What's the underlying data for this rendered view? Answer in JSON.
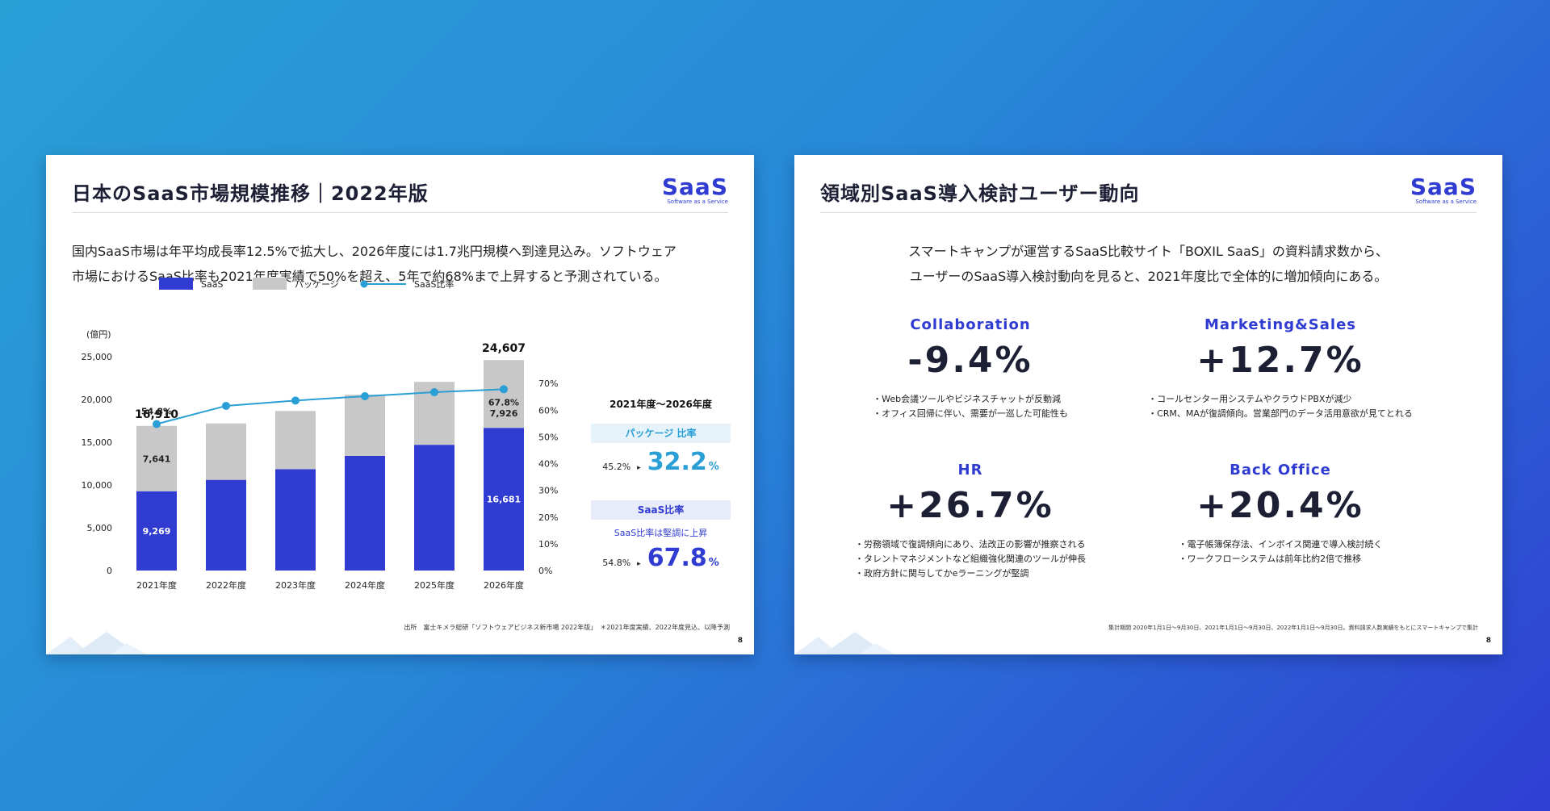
{
  "slide_left": {
    "title": "日本のSaaS市場規模推移｜2022年版",
    "logo_main": "SaaS",
    "logo_sub": "Software as a Service",
    "lead_line1": "国内SaaS市場は年平均成長率12.5%で拡大し、2026年度には1.7兆円規模へ到達見込み。ソフトウェア",
    "lead_line2": "市場におけるSaaS比率も2021年度実績で50%を超え、5年で約68%まで上昇すると予測されている。",
    "source": "出所　富士キメラ総研「ソフトウェアビジネス新市場 2022年版」　＊2021年度実績、2022年度見込、以降予測",
    "page": "8",
    "panel": {
      "head": "2021年度〜2026年度",
      "package_label": "パッケージ 比率",
      "package_from": "45.2%",
      "package_to": "32.2",
      "saas_label": "SaaS比率",
      "saas_note": "SaaS比率は堅調に上昇",
      "saas_from": "54.8%",
      "saas_to": "67.8",
      "unit": "%",
      "arrow": "▸"
    }
  },
  "chart_data": {
    "type": "bar",
    "stacked": true,
    "categories": [
      "2021年度",
      "2022年度",
      "2023年度",
      "2024年度",
      "2025年度",
      "2026年度"
    ],
    "unit_label": "(億円)",
    "series": [
      {
        "name": "SaaS",
        "color": "#2f3bd1",
        "values": [
          9269,
          10600,
          11850,
          13400,
          14700,
          16681
        ]
      },
      {
        "name": "パッケージ",
        "color": "#c8c8c8",
        "values": [
          7641,
          6600,
          6800,
          7150,
          7350,
          7926
        ]
      }
    ],
    "line_series": {
      "name": "SaaS比率",
      "color": "#2a9fd6",
      "axis": "right",
      "values": [
        54.8,
        61.6,
        63.6,
        65.2,
        66.7,
        67.8
      ]
    },
    "y_left": {
      "min": 0,
      "max": 25000,
      "ticks": [
        "0",
        "5,000",
        "10,000",
        "15,000",
        "20,000",
        "25,000"
      ]
    },
    "y_right": {
      "min": 0,
      "max": 80,
      "ticks": [
        "0%",
        "10%",
        "20%",
        "30%",
        "40%",
        "50%",
        "60%",
        "70%"
      ]
    },
    "total_labels": {
      "first": "16,910",
      "last": "24,607"
    },
    "bar_labels": {
      "saas_first": "9,269",
      "pkg_first": "7,641",
      "saas_last": "16,681",
      "pkg_last": "7,926"
    },
    "ratio_labels": {
      "first": "54.8%",
      "last": "67.8%"
    },
    "legend_position": "top-left"
  },
  "slide_right": {
    "title": "領域別SaaS導入検討ユーザー動向",
    "logo_main": "SaaS",
    "logo_sub": "Software as a Service",
    "lead_line1": "スマートキャンプが運営するSaaS比較サイト「BOXIL SaaS」の資料請求数から、",
    "lead_line2": "ユーザーのSaaS導入検討動向を見ると、2021年度比で全体的に増加傾向にある。",
    "areas": [
      {
        "name": "Collaboration",
        "value": "-9.4%",
        "notes": [
          "・Web会議ツールやビジネスチャットが反動減",
          "・オフィス回帰に伴い、需要が一巡した可能性も"
        ]
      },
      {
        "name": "Marketing&Sales",
        "value": "+12.7%",
        "notes": [
          "・コールセンター用システムやクラウドPBXが減少",
          "・CRM、MAが復調傾向。営業部門のデータ活用意欲が見てとれる"
        ]
      },
      {
        "name": "HR",
        "value": "+26.7%",
        "notes": [
          "・労務領域で復調傾向にあり、法改正の影響が推察される",
          "・タレントマネジメントなど組織強化関連のツールが伸長",
          "・政府方針に関与してかeラーニングが堅調"
        ]
      },
      {
        "name": "Back Office",
        "value": "+20.4%",
        "notes": [
          "・電子帳簿保存法、インボイス関連で導入検討続く",
          "・ワークフローシステムは前年比約2倍で推移"
        ]
      }
    ],
    "footnote": "集計期間 2020年1月1日〜9月30日、2021年1月1日〜9月30日、2022年1月1日〜9月30日。資料請求人数実績をもとにスマートキャンプで集計",
    "page": "8"
  }
}
